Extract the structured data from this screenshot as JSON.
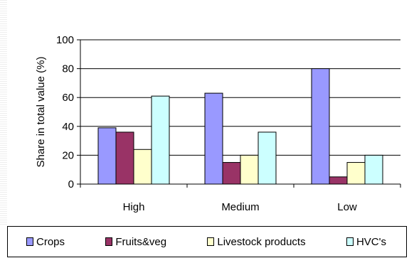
{
  "chart_data": {
    "type": "bar",
    "title": "",
    "xlabel": "",
    "ylabel": "Share in total value (%)",
    "categories": [
      "High",
      "Medium",
      "Low"
    ],
    "ylim": [
      0,
      100
    ],
    "yticks": [
      "0",
      "20",
      "40",
      "60",
      "80",
      "100"
    ],
    "grid": true,
    "legend_position": "bottom",
    "series": [
      {
        "name": "Crops",
        "values": [
          39,
          63,
          80
        ],
        "color": "#9999ff"
      },
      {
        "name": "Fruits&veg",
        "values": [
          36,
          15,
          5
        ],
        "color": "#993366"
      },
      {
        "name": "Livestock products",
        "values": [
          24,
          20,
          15
        ],
        "color": "#ffffcc"
      },
      {
        "name": "HVC's",
        "values": [
          61,
          36,
          20
        ],
        "color": "#ccffff"
      }
    ]
  }
}
